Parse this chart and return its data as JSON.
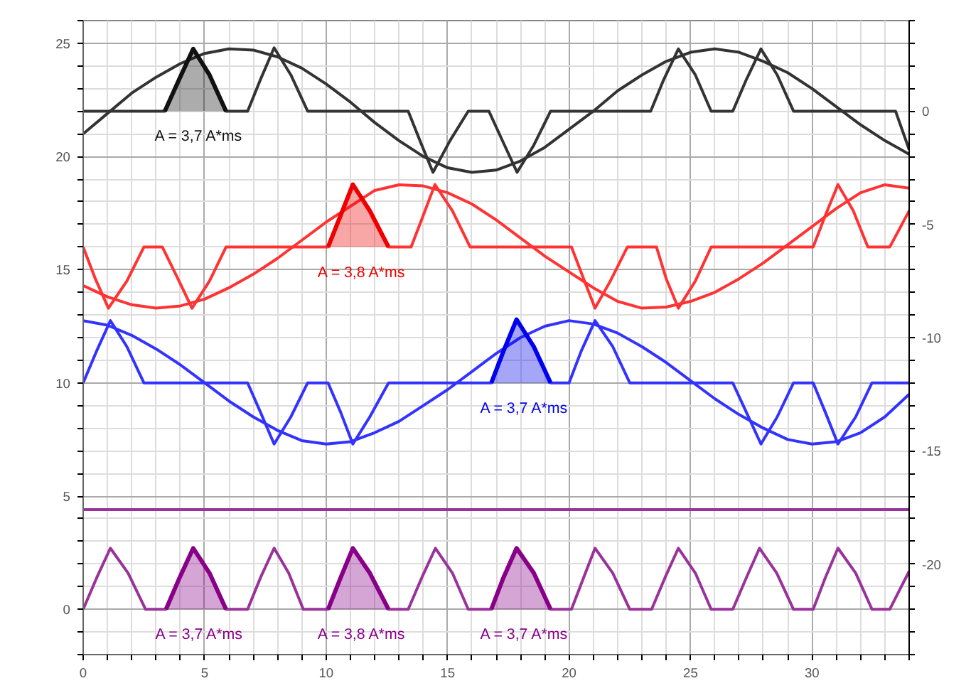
{
  "chart_data": {
    "type": "line",
    "xlim": [
      0,
      34
    ],
    "xticks": [
      0,
      {
        "value": 1,
        "label": null
      },
      {
        "value": 2,
        "label": null
      },
      {
        "value": 3,
        "label": null
      },
      {
        "value": 4,
        "label": null
      },
      5,
      {
        "value": 6,
        "label": null
      },
      {
        "value": 7,
        "label": null
      },
      {
        "value": 8,
        "label": null
      },
      {
        "value": 9,
        "label": null
      },
      10,
      {
        "value": 11,
        "label": null
      },
      {
        "value": 12,
        "label": null
      },
      {
        "value": 13,
        "label": null
      },
      {
        "value": 14,
        "label": null
      },
      15,
      {
        "value": 16,
        "label": null
      },
      {
        "value": 17,
        "label": null
      },
      {
        "value": 18,
        "label": null
      },
      {
        "value": 19,
        "label": null
      },
      20,
      {
        "value": 21,
        "label": null
      },
      {
        "value": 22,
        "label": null
      },
      {
        "value": 23,
        "label": null
      },
      {
        "value": 24,
        "label": null
      },
      25,
      {
        "value": 26,
        "label": null
      },
      {
        "value": 27,
        "label": null
      },
      {
        "value": 28,
        "label": null
      },
      {
        "value": 29,
        "label": null
      },
      30,
      {
        "value": 31,
        "label": null
      },
      {
        "value": 32,
        "label": null
      },
      {
        "value": 33,
        "label": null
      },
      {
        "value": 34,
        "label": null
      }
    ],
    "ylim": [
      -2,
      26
    ],
    "yticks": [
      {
        "value": -2,
        "label": null
      },
      {
        "value": -1,
        "label": null
      },
      0,
      {
        "value": 1,
        "label": null
      },
      {
        "value": 2,
        "label": null
      },
      {
        "value": 3,
        "label": null
      },
      {
        "value": 4,
        "label": null
      },
      5,
      {
        "value": 6,
        "label": null
      },
      {
        "value": 7,
        "label": null
      },
      {
        "value": 8,
        "label": null
      },
      {
        "value": 9,
        "label": null
      },
      10,
      {
        "value": 11,
        "label": null
      },
      {
        "value": 12,
        "label": null
      },
      {
        "value": 13,
        "label": null
      },
      {
        "value": 14,
        "label": null
      },
      15,
      {
        "value": 16,
        "label": null
      },
      {
        "value": 17,
        "label": null
      },
      {
        "value": 18,
        "label": null
      },
      {
        "value": 19,
        "label": null
      },
      20,
      {
        "value": 21,
        "label": null
      },
      {
        "value": 22,
        "label": null
      },
      {
        "value": 23,
        "label": null
      },
      {
        "value": 24,
        "label": null
      },
      25,
      {
        "value": 26,
        "label": null
      }
    ],
    "y2lim": [
      -24,
      4
    ],
    "y2ticks": [
      {
        "value": -24,
        "label": null
      },
      {
        "value": -23,
        "label": null
      },
      {
        "value": -22,
        "label": null
      },
      {
        "value": -21,
        "label": null
      },
      -20,
      {
        "value": -19,
        "label": null
      },
      {
        "value": -18,
        "label": null
      },
      {
        "value": -17,
        "label": null
      },
      {
        "value": -16,
        "label": null
      },
      -15,
      {
        "value": -14,
        "label": null
      },
      {
        "value": -13,
        "label": null
      },
      {
        "value": -12,
        "label": null
      },
      {
        "value": -11,
        "label": null
      },
      -10,
      {
        "value": -9,
        "label": null
      },
      {
        "value": -8,
        "label": null
      },
      {
        "value": -7,
        "label": null
      },
      {
        "value": -6,
        "label": null
      },
      -5,
      {
        "value": -4,
        "label": null
      },
      {
        "value": -3,
        "label": null
      },
      {
        "value": -2,
        "label": null
      },
      {
        "value": -1,
        "label": null
      },
      0,
      {
        "value": 1,
        "label": null
      },
      {
        "value": 2,
        "label": null
      },
      {
        "value": 3,
        "label": null
      },
      {
        "value": 4,
        "label": null
      }
    ],
    "grid": true,
    "line_style": "solid",
    "series": [
      {
        "color": "#333333",
        "x": [
          0,
          1,
          2,
          3,
          4,
          5,
          6,
          7,
          8,
          9,
          10,
          11,
          12,
          13,
          14,
          15,
          16,
          17,
          18,
          19,
          20,
          21,
          22,
          23,
          24,
          25,
          26,
          27,
          28,
          29,
          30,
          31,
          32,
          33,
          34
        ],
        "values": [
          21.0,
          21.9,
          22.8,
          23.5,
          24.1,
          24.55,
          24.75,
          24.7,
          24.4,
          23.9,
          23.2,
          22.4,
          21.5,
          20.7,
          20.0,
          19.5,
          19.3,
          19.4,
          19.8,
          20.4,
          21.2,
          22.0,
          22.9,
          23.6,
          24.2,
          24.6,
          24.75,
          24.6,
          24.2,
          23.7,
          23.0,
          22.2,
          21.4,
          20.7,
          20.1
        ]
      },
      {
        "color": "#333333",
        "x": [
          0,
          3.36,
          3.95,
          4.53,
          5.2,
          5.88,
          6.77,
          7.3,
          7.86,
          8.55,
          9.24,
          13.38,
          13.9,
          14.4,
          15.1,
          15.85,
          16.7,
          17.3,
          17.86,
          18.55,
          19.24,
          23.36,
          23.9,
          24.5,
          25.2,
          25.85,
          26.74,
          27.3,
          27.9,
          28.57,
          29.24,
          33.44,
          34
        ],
        "values": [
          22,
          22,
          23.4,
          24.75,
          23.6,
          22,
          22,
          23.4,
          24.8,
          23.6,
          22,
          22,
          20.6,
          19.3,
          20.7,
          22,
          22,
          20.6,
          19.3,
          20.5,
          22,
          22,
          23.4,
          24.75,
          23.6,
          22,
          22,
          23.4,
          24.75,
          23.6,
          22,
          22,
          20.3
        ]
      },
      {
        "color": "#111111",
        "x": [
          3.36,
          3.95,
          4.53,
          5.2,
          5.88
        ],
        "values": [
          22,
          23.4,
          24.75,
          23.6,
          22
        ],
        "lower": [
          22,
          22,
          22,
          22,
          22
        ],
        "upper": [
          22,
          23.4,
          24.75,
          23.6,
          22
        ]
      },
      {
        "color": "#ff3333",
        "x": [
          0,
          1,
          2,
          3,
          4,
          5,
          6,
          7,
          8,
          9,
          10,
          11,
          12,
          13,
          14,
          15,
          16,
          17,
          18,
          19,
          20,
          21,
          22,
          23,
          24,
          25,
          26,
          27,
          28,
          29,
          30,
          31,
          32,
          33,
          34
        ],
        "values": [
          14.3,
          13.8,
          13.45,
          13.3,
          13.4,
          13.7,
          14.2,
          14.8,
          15.5,
          16.3,
          17.1,
          17.8,
          18.5,
          18.75,
          18.7,
          18.4,
          17.9,
          17.2,
          16.4,
          15.6,
          14.9,
          14.2,
          13.6,
          13.3,
          13.35,
          13.6,
          14.0,
          14.6,
          15.3,
          16.1,
          16.9,
          17.7,
          18.4,
          18.75,
          18.6
        ]
      },
      {
        "color": "#ff3333",
        "x": [
          0,
          0.5,
          1.04,
          1.8,
          2.5,
          3.26,
          3.9,
          4.48,
          5.2,
          5.88,
          10.08,
          10.6,
          11.1,
          11.8,
          12.57,
          13.5,
          14.0,
          14.48,
          15.2,
          15.93,
          20.1,
          20.6,
          21.07,
          21.7,
          22.4,
          23.6,
          24.0,
          24.5,
          25.2,
          25.85,
          30.05,
          30.55,
          31.07,
          31.7,
          32.3,
          33.2,
          34
        ],
        "values": [
          16,
          14.6,
          13.3,
          14.5,
          16,
          16,
          14.6,
          13.3,
          14.5,
          16,
          16,
          17.4,
          18.76,
          17.6,
          16,
          16,
          17.4,
          18.76,
          17.6,
          16,
          16,
          14.6,
          13.3,
          14.5,
          16,
          16,
          14.6,
          13.3,
          14.5,
          16,
          16,
          17.4,
          18.76,
          17.6,
          16,
          16,
          17.6
        ]
      },
      {
        "color": "#ee0000",
        "x": [
          10.08,
          10.6,
          11.1,
          11.8,
          12.57
        ],
        "values": [
          16,
          17.4,
          18.76,
          17.6,
          16
        ],
        "lower": [
          16,
          16,
          16,
          16,
          16
        ],
        "upper": [
          16,
          17.4,
          18.76,
          17.6,
          16
        ]
      },
      {
        "color": "#3333ff",
        "x": [
          0,
          1,
          2,
          3,
          4,
          5,
          6,
          7,
          8,
          9,
          10,
          11,
          12,
          13,
          14,
          15,
          16,
          17,
          18,
          19,
          20,
          21,
          22,
          23,
          24,
          25,
          26,
          27,
          28,
          29,
          30,
          31,
          32,
          33,
          34
        ],
        "values": [
          12.75,
          12.55,
          12.1,
          11.5,
          10.8,
          10.0,
          9.2,
          8.5,
          7.9,
          7.45,
          7.3,
          7.4,
          7.8,
          8.3,
          9.0,
          9.7,
          10.5,
          11.3,
          12.0,
          12.5,
          12.75,
          12.6,
          12.2,
          11.6,
          10.9,
          10.1,
          9.3,
          8.6,
          8.0,
          7.5,
          7.3,
          7.4,
          7.8,
          8.5,
          9.5
        ]
      },
      {
        "color": "#3333ff",
        "x": [
          0,
          0.55,
          1.12,
          1.8,
          2.5,
          6.77,
          7.3,
          7.86,
          8.55,
          9.24,
          10.08,
          10.6,
          11.1,
          11.8,
          12.57,
          16.8,
          17.3,
          17.84,
          18.55,
          19.24,
          20.0,
          20.5,
          21.07,
          21.8,
          22.5,
          26.74,
          27.3,
          27.9,
          28.57,
          29.24,
          30.05,
          30.55,
          31.07,
          31.8,
          32.47,
          34
        ],
        "values": [
          10,
          11.4,
          12.75,
          11.6,
          10,
          10,
          8.7,
          7.3,
          8.5,
          10,
          10,
          8.7,
          7.3,
          8.5,
          10,
          10,
          11.4,
          12.8,
          11.6,
          10,
          10,
          11.4,
          12.75,
          11.6,
          10,
          10,
          8.7,
          7.3,
          8.5,
          10,
          10,
          8.7,
          7.3,
          8.5,
          10,
          10
        ]
      },
      {
        "color": "#0000ee",
        "x": [
          16.8,
          17.3,
          17.84,
          18.55,
          19.24
        ],
        "values": [
          10,
          11.4,
          12.8,
          11.6,
          10
        ],
        "lower": [
          10,
          10,
          10,
          10,
          10
        ],
        "upper": [
          10,
          11.4,
          12.8,
          11.6,
          10
        ]
      },
      {
        "color": "#993399",
        "x": [
          0,
          34
        ],
        "values": [
          4.4,
          4.4
        ]
      },
      {
        "color": "#993399",
        "x": [
          0,
          0.56,
          1.12,
          1.85,
          2.57,
          3.41,
          3.97,
          4.53,
          5.2,
          5.88,
          6.77,
          7.3,
          7.86,
          8.46,
          9.06,
          10.08,
          10.6,
          11.1,
          11.8,
          12.57,
          13.38,
          13.94,
          14.5,
          15.2,
          15.85,
          16.8,
          17.3,
          17.84,
          18.55,
          19.24,
          20.1,
          20.6,
          21.07,
          21.8,
          22.5,
          23.4,
          23.95,
          24.5,
          25.2,
          25.85,
          26.74,
          27.3,
          27.84,
          28.55,
          29.24,
          30.05,
          30.55,
          31.07,
          31.8,
          32.47,
          33.2,
          34
        ],
        "values": [
          0,
          1.4,
          2.7,
          1.6,
          0,
          0,
          1.4,
          2.7,
          1.6,
          0,
          0,
          1.4,
          2.7,
          1.6,
          0,
          0,
          1.4,
          2.7,
          1.6,
          0,
          0,
          1.4,
          2.7,
          1.6,
          0,
          0,
          1.4,
          2.7,
          1.6,
          0,
          0,
          1.4,
          2.7,
          1.6,
          0,
          0,
          1.4,
          2.7,
          1.6,
          0,
          0,
          1.4,
          2.7,
          1.6,
          0,
          0,
          1.4,
          2.7,
          1.6,
          0,
          0,
          1.68
        ]
      },
      {
        "color": "#880088",
        "x": [
          3.41,
          3.97,
          4.53,
          5.2,
          5.88
        ],
        "values": [
          0,
          1.4,
          2.7,
          1.6,
          0
        ],
        "lower": [
          0,
          0,
          0,
          0,
          0
        ],
        "upper": [
          0,
          1.4,
          2.7,
          1.6,
          0
        ]
      },
      {
        "color": "#880088",
        "x": [
          10.08,
          10.6,
          11.1,
          11.8,
          12.57
        ],
        "values": [
          0,
          1.4,
          2.7,
          1.6,
          0
        ],
        "lower": [
          0,
          0,
          0,
          0,
          0
        ],
        "upper": [
          0,
          1.4,
          2.7,
          1.6,
          0
        ]
      },
      {
        "color": "#880088",
        "x": [
          16.8,
          17.3,
          17.84,
          18.55,
          19.24
        ],
        "values": [
          0,
          1.4,
          2.7,
          1.6,
          0
        ],
        "lower": [
          0,
          0,
          0,
          0,
          0
        ],
        "upper": [
          0,
          1.4,
          2.7,
          1.6,
          0
        ]
      }
    ],
    "annotations": [
      "A = 3,7 A*ms",
      "A = 3,8 A*ms",
      "A = 3,7 A*ms",
      "A = 3,7 A*ms",
      "A = 3,8 A*ms",
      "A = 3,7 A*ms"
    ]
  }
}
